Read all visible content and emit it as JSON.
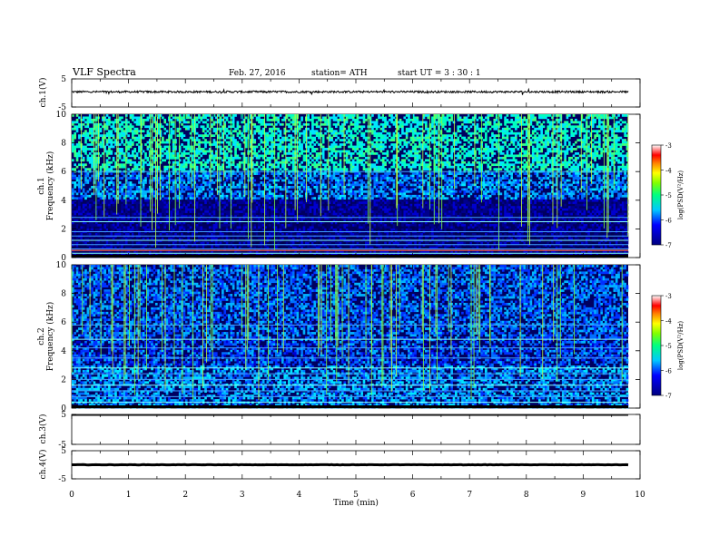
{
  "header": {
    "title": "VLF  Spectra",
    "date": "Feb. 27, 2016",
    "station": "station= ATH",
    "start": "start  UT  =   3  : 30 : 1"
  },
  "colors": {
    "spectrum_low": "#000040",
    "spectrum_mid": "#00c8ff",
    "spectrum_high": "#00ff80",
    "trace": "#000000"
  },
  "chart_data": [
    {
      "id": "ch1-waveform",
      "type": "line",
      "ylabel": "ch.1(V)",
      "ylim": [
        -5,
        5
      ],
      "yticks": [
        "5",
        "-5"
      ],
      "xlim": [
        0,
        10
      ],
      "series": [
        {
          "y_mean": 0.4,
          "y_jitter": 0.35
        }
      ]
    },
    {
      "id": "ch1-spectrogram",
      "type": "heatmap",
      "channel_label": "ch.1",
      "ylabel": "Frequency  (kHz)",
      "ylim": [
        0,
        10
      ],
      "yticks": [
        "0",
        "2",
        "4",
        "6",
        "8",
        "10"
      ],
      "xlim": [
        0,
        9.8
      ],
      "colorbar": {
        "label": "log(PSD(V²/Hz)",
        "range": [
          -7,
          -3
        ],
        "ticks": [
          "-3",
          "-4",
          "-5",
          "-6",
          "-7"
        ]
      }
    },
    {
      "id": "ch2-spectrogram",
      "type": "heatmap",
      "channel_label": "ch.2",
      "ylabel": "Frequency  (kHz)",
      "ylim": [
        0,
        10
      ],
      "yticks": [
        "0",
        "2",
        "4",
        "6",
        "8",
        "10"
      ],
      "xlim": [
        0,
        9.8
      ],
      "colorbar": {
        "label": "log(PSD(V²/Hz)",
        "range": [
          -7,
          -3
        ],
        "ticks": [
          "-3",
          "-4",
          "-5",
          "-6",
          "-7"
        ]
      }
    },
    {
      "id": "ch3-waveform",
      "type": "line",
      "ylabel": "ch.3(V)",
      "ylim": [
        -5,
        5
      ],
      "yticks": [
        "5",
        "-5"
      ],
      "xlim": [
        0,
        10
      ],
      "series": [
        {
          "y_mean": 5,
          "y_jitter": 0
        }
      ]
    },
    {
      "id": "ch4-waveform",
      "type": "line",
      "ylabel": "ch.4(V)",
      "ylim": [
        -5,
        5
      ],
      "yticks": [
        "5",
        "-5"
      ],
      "xlim": [
        0,
        10
      ],
      "series": [
        {
          "y_mean": 0,
          "y_jitter": 0.05
        }
      ]
    }
  ],
  "x_axis": {
    "label": "Time  (min)",
    "ticks": [
      "0",
      "1",
      "2",
      "3",
      "4",
      "5",
      "6",
      "7",
      "8",
      "9",
      "10"
    ]
  }
}
